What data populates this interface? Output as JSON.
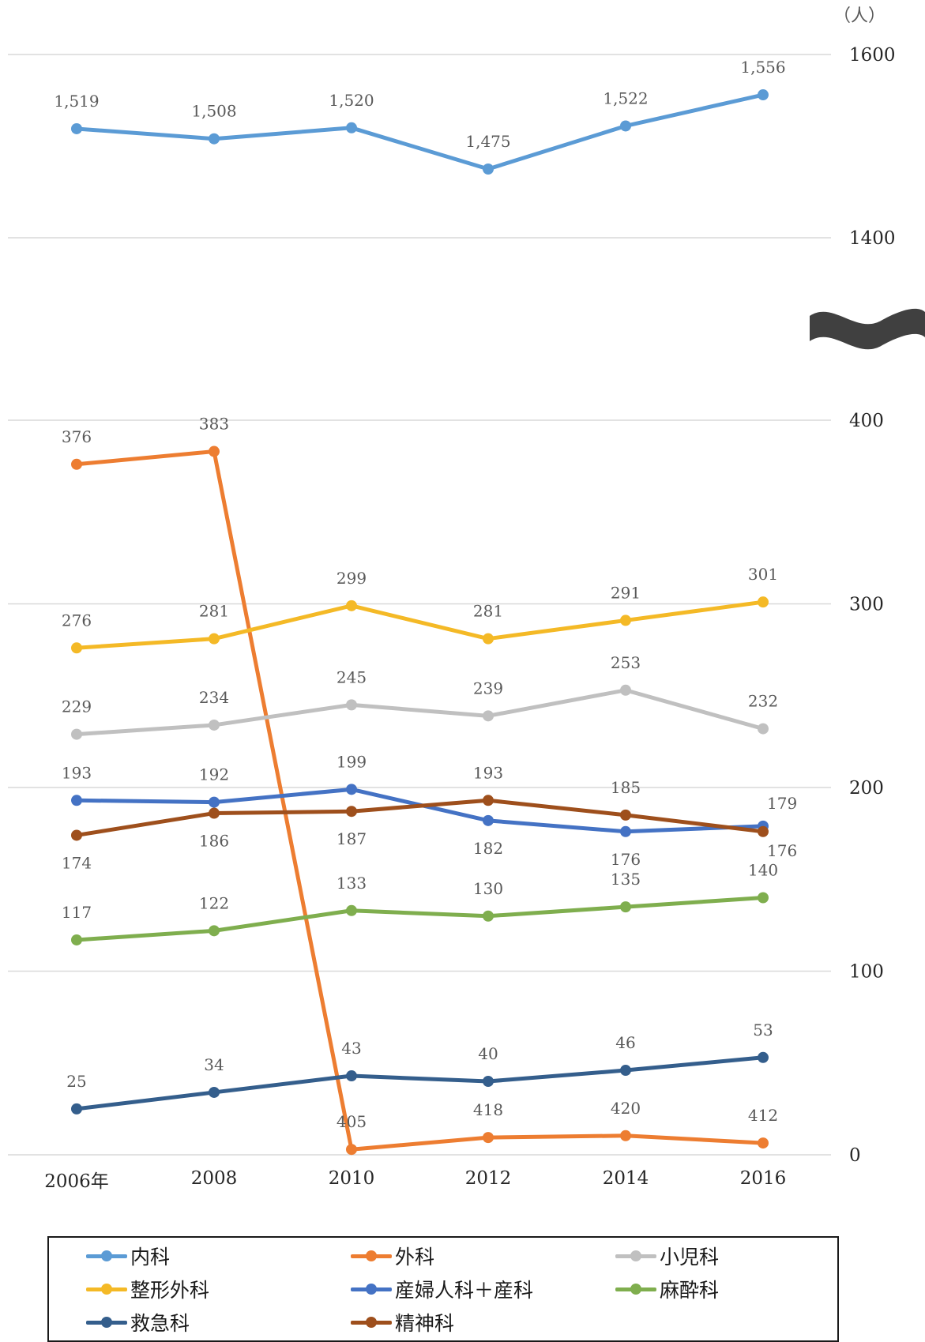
{
  "chart_data": {
    "type": "line",
    "title": "",
    "unit_label": "（人）",
    "categories": [
      "2006年",
      "2008",
      "2010",
      "2012",
      "2014",
      "2016"
    ],
    "y_ticks": [
      "1600",
      "1400",
      "400",
      "300",
      "200",
      "100",
      "0"
    ],
    "axis_break": {
      "lower_max": 400,
      "upper_min": 1400,
      "upper_max": 1600
    },
    "grid": true,
    "legend_position": "bottom",
    "series": [
      {
        "name": "内科",
        "color": "#5b9bd5",
        "values": [
          1519,
          1508,
          1520,
          1475,
          1522,
          1556
        ],
        "labels": [
          "1,519",
          "1,508",
          "1,520",
          "1,475",
          "1,522",
          "1,556"
        ]
      },
      {
        "name": "外科",
        "color": "#ed7d31",
        "values": [
          376,
          383,
          405,
          418,
          420,
          412
        ],
        "labels": [
          "376",
          "383",
          "405",
          "418",
          "420",
          "412"
        ]
      },
      {
        "name": "小児科",
        "color": "#c0c0c0",
        "values": [
          229,
          234,
          245,
          239,
          253,
          232
        ],
        "labels": [
          "229",
          "234",
          "245",
          "239",
          "253",
          "232"
        ]
      },
      {
        "name": "整形外科",
        "color": "#f4b926",
        "values": [
          276,
          281,
          299,
          281,
          291,
          301
        ],
        "labels": [
          "276",
          "281",
          "299",
          "281",
          "291",
          "301"
        ]
      },
      {
        "name": "産婦人科＋産科",
        "color": "#4472c4",
        "values": [
          193,
          192,
          199,
          182,
          176,
          179
        ],
        "labels": [
          "193",
          "192",
          "199",
          "182",
          "176",
          "179"
        ]
      },
      {
        "name": "麻酔科",
        "color": "#7fae4e",
        "values": [
          117,
          122,
          133,
          130,
          135,
          140
        ],
        "labels": [
          "117",
          "122",
          "133",
          "130",
          "135",
          "140"
        ]
      },
      {
        "name": "救急科",
        "color": "#345e8c",
        "values": [
          25,
          34,
          43,
          40,
          46,
          53
        ],
        "labels": [
          "25",
          "34",
          "43",
          "40",
          "46",
          "53"
        ]
      },
      {
        "name": "精神科",
        "color": "#9e4f1c",
        "values": [
          174,
          186,
          187,
          193,
          185,
          176
        ],
        "labels": [
          "174",
          "186",
          "187",
          "193",
          "185",
          "176"
        ]
      }
    ]
  }
}
